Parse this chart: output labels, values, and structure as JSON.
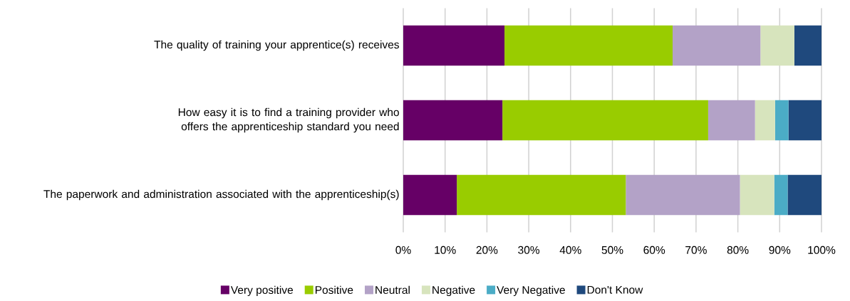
{
  "chart_data": {
    "type": "bar",
    "orientation": "horizontal",
    "stacked": true,
    "categories": [
      "The quality of training your apprentice(s) receives",
      "How easy it is to find a training provider who offers the apprenticeship standard you need",
      "The paperwork and administration associated with the apprenticeship(s)"
    ],
    "series": [
      {
        "name": "Very positive",
        "color": "#660066",
        "values": [
          24.2,
          23.7,
          12.8
        ]
      },
      {
        "name": "Positive",
        "color": "#99cc00",
        "values": [
          40.2,
          49.2,
          40.4
        ]
      },
      {
        "name": "Neutral",
        "color": "#b3a2c7",
        "values": [
          21.0,
          11.2,
          27.3
        ]
      },
      {
        "name": "Negative",
        "color": "#d7e4bd",
        "values": [
          8.1,
          4.8,
          8.2
        ]
      },
      {
        "name": "Very Negative",
        "color": "#4bacc6",
        "values": [
          0,
          3.2,
          3.2
        ]
      },
      {
        "name": "Don't Know",
        "color": "#1f497d",
        "values": [
          6.5,
          7.9,
          8.1
        ]
      }
    ],
    "xlim": [
      0,
      100
    ],
    "xticks": [
      {
        "value": 0,
        "label": "0%"
      },
      {
        "value": 10,
        "label": "10%"
      },
      {
        "value": 20,
        "label": "20%"
      },
      {
        "value": 30,
        "label": "30%"
      },
      {
        "value": 40,
        "label": "40%"
      },
      {
        "value": 50,
        "label": "50%"
      },
      {
        "value": 60,
        "label": "60%"
      },
      {
        "value": 70,
        "label": "70%"
      },
      {
        "value": 80,
        "label": "80%"
      },
      {
        "value": 90,
        "label": "90%"
      },
      {
        "value": 100,
        "label": "100%"
      }
    ],
    "grid": "x",
    "legend": "bottom"
  }
}
